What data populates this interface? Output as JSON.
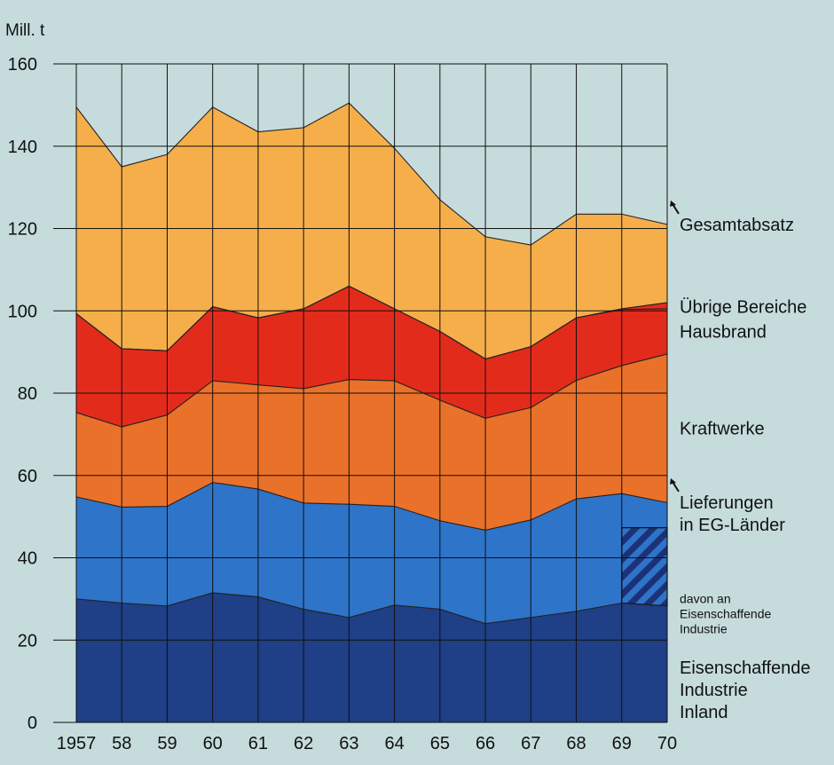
{
  "chart_data": {
    "type": "area",
    "title": "",
    "ylabel": "Mill. t",
    "xlabel": "",
    "x": [
      1957,
      1958,
      1959,
      1960,
      1961,
      1962,
      1963,
      1964,
      1965,
      1966,
      1967,
      1968,
      1969,
      1970
    ],
    "x_tick_labels": [
      "1957",
      "58",
      "59",
      "60",
      "61",
      "62",
      "63",
      "64",
      "65",
      "66",
      "67",
      "68",
      "69",
      "70"
    ],
    "ylim": [
      0,
      160
    ],
    "y_ticks": [
      0,
      20,
      40,
      60,
      80,
      100,
      120,
      140,
      160
    ],
    "grid": true,
    "stacking": "cumulative (values are upper boundaries of each band)",
    "series": [
      {
        "name": "Eisenschaffende Industrie Inland",
        "color": "#1f3f86",
        "values": [
          30,
          29,
          28.3,
          31.5,
          30.5,
          27.5,
          25.5,
          28.5,
          27.5,
          24,
          25.5,
          27,
          29,
          28.3
        ]
      },
      {
        "name": "Lieferungen in EG-Länder",
        "color": "#2e74c8",
        "values": [
          54.8,
          52.3,
          52.5,
          58.3,
          56.7,
          53.3,
          53,
          52.5,
          49,
          46.7,
          49.2,
          54.3,
          55.6,
          53.4
        ]
      },
      {
        "name": "Kraftwerke",
        "color": "#ea7129",
        "values": [
          75.3,
          71.8,
          74.7,
          83,
          82,
          81.1,
          83.3,
          83,
          78.3,
          73.9,
          76.5,
          83.1,
          86.7,
          89.5
        ]
      },
      {
        "name": "Hausbrand",
        "color": "#e32b1c",
        "values": [
          99.3,
          90.8,
          90.3,
          101,
          98.3,
          100.5,
          106,
          100.5,
          95,
          88.3,
          91.3,
          98.3,
          100.3,
          100.5
        ]
      },
      {
        "name": "Übrige Bereiche",
        "color": "#e32b1c",
        "values": [
          99.3,
          90.8,
          90.3,
          101,
          98.3,
          100.5,
          106,
          100.5,
          95,
          88.3,
          91.3,
          98.3,
          100.5,
          102
        ]
      },
      {
        "name": "Gesamtabsatz",
        "color": "#f6ae4b",
        "values": [
          149.5,
          135,
          138,
          149.5,
          143.5,
          144.5,
          150.5,
          139.5,
          127,
          118,
          116,
          123.5,
          123.5,
          121
        ]
      }
    ],
    "subset": {
      "name": "davon an Eisenschaffende Industrie",
      "within": "Lieferungen in EG-Länder",
      "x_range": [
        1969,
        1970
      ],
      "values": [
        47.3,
        47.3
      ],
      "pattern": "hatched"
    },
    "legend_placement": "right",
    "legend": [
      {
        "label_lines": [
          "Gesamtabsatz"
        ],
        "value": 121,
        "pointer": true,
        "style": "normal"
      },
      {
        "label_lines": [
          "Übrige Bereiche"
        ],
        "value": 101,
        "pointer": false,
        "style": "normal"
      },
      {
        "label_lines": [
          "Hausbrand"
        ],
        "value": 95,
        "pointer": false,
        "style": "normal"
      },
      {
        "label_lines": [
          "Kraftwerke"
        ],
        "value": 71.5,
        "pointer": false,
        "style": "normal"
      },
      {
        "label_lines": [
          "Lieferungen",
          "in EG-Länder"
        ],
        "value": 53.5,
        "pointer": true,
        "style": "normal"
      },
      {
        "label_lines": [
          "davon an",
          "Eisenschaffende",
          "Industrie"
        ],
        "value": 31.8,
        "pointer": false,
        "style": "small"
      },
      {
        "label_lines": [
          "Eisenschaffende",
          "Industrie",
          "Inland"
        ],
        "value": 13.4,
        "pointer": false,
        "style": "normal"
      }
    ],
    "colors": {
      "background": "#c6dcdc",
      "grid": "#111111",
      "hatch_stroke": "#1c3278"
    }
  }
}
